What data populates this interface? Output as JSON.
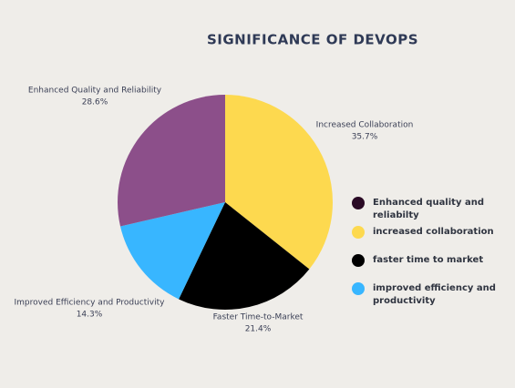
{
  "chart_data": {
    "type": "pie",
    "title": "SIGNIFICANCE OF DEVOPS",
    "categories": [
      "Increased Collaboration",
      "Faster Time-to-Market",
      "Improved Efficiency and Productivity",
      "Enhanced Quality and Reliability"
    ],
    "values": [
      35.7,
      21.4,
      14.3,
      28.6
    ],
    "value_labels": [
      "35.7%",
      "21.4%",
      "14.3%",
      "28.6%"
    ],
    "colors": [
      "#fdd94f",
      "#000000",
      "#38b6ff",
      "#8c4f8a"
    ],
    "legend": [
      {
        "label": "Enhanced quality and reliabilty",
        "color": "#2a0a25"
      },
      {
        "label": "increased collaboration",
        "color": "#fdd94f"
      },
      {
        "label": "faster time to market",
        "color": "#000000"
      },
      {
        "label": "improved efficiency and productivity",
        "color": "#38b6ff"
      }
    ]
  }
}
